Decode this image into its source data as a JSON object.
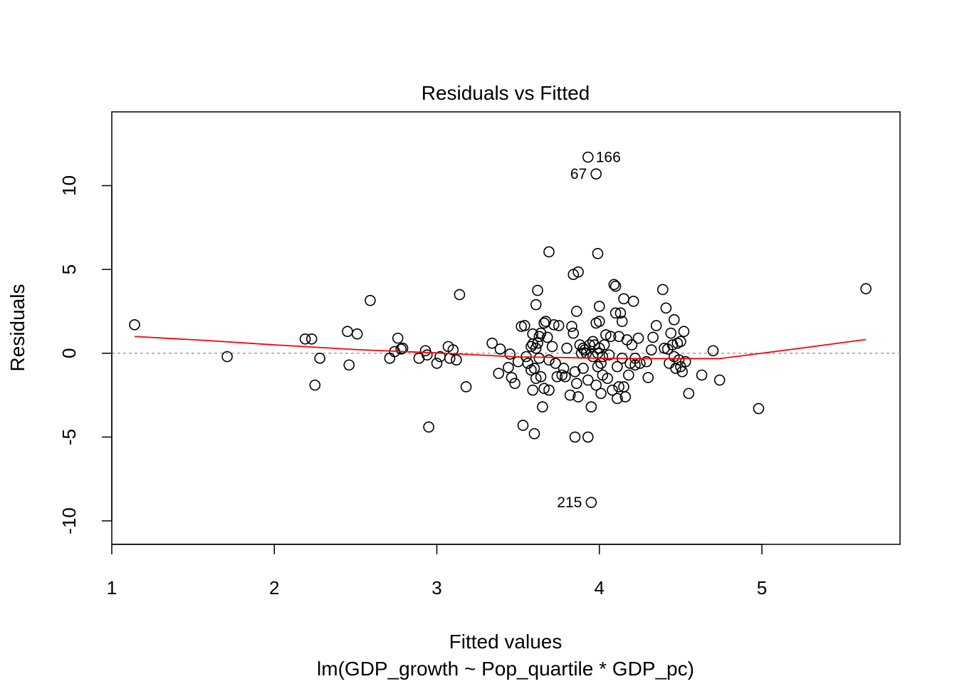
{
  "chart_data": {
    "type": "scatter",
    "title": "Residuals vs Fitted",
    "xlabel": "Fitted values",
    "ylabel": "Residuals",
    "subtitle": "lm(GDP_growth ~ Pop_quartile * GDP_pc)",
    "xlim": [
      1.0,
      5.85
    ],
    "ylim": [
      -11.4,
      14.4
    ],
    "x_ticks": [
      1,
      2,
      3,
      4,
      5
    ],
    "y_ticks": [
      -10,
      -5,
      0,
      5,
      10
    ],
    "reference_line": 0,
    "colors": {
      "points": "#000000",
      "smooth": "#ff0000",
      "reference": "#a0a0a0"
    },
    "points": [
      [
        1.14,
        1.7
      ],
      [
        1.71,
        -0.2
      ],
      [
        2.19,
        0.85
      ],
      [
        2.23,
        0.85
      ],
      [
        2.25,
        -1.9
      ],
      [
        2.28,
        -0.3
      ],
      [
        2.45,
        1.3
      ],
      [
        2.46,
        -0.7
      ],
      [
        2.51,
        1.15
      ],
      [
        2.59,
        3.15
      ],
      [
        2.71,
        -0.3
      ],
      [
        2.74,
        0.1
      ],
      [
        2.76,
        0.9
      ],
      [
        2.78,
        0.25
      ],
      [
        2.79,
        0.3
      ],
      [
        2.89,
        -0.3
      ],
      [
        2.93,
        0.15
      ],
      [
        2.94,
        -0.1
      ],
      [
        2.95,
        -4.4
      ],
      [
        3.0,
        -0.6
      ],
      [
        3.02,
        -0.2
      ],
      [
        3.07,
        0.4
      ],
      [
        3.08,
        -0.3
      ],
      [
        3.1,
        0.2
      ],
      [
        3.12,
        -0.4
      ],
      [
        3.14,
        3.5
      ],
      [
        3.18,
        -2.0
      ],
      [
        3.34,
        0.6
      ],
      [
        3.38,
        -1.2
      ],
      [
        3.39,
        0.25
      ],
      [
        3.44,
        -0.85
      ],
      [
        3.45,
        -0.05
      ],
      [
        3.46,
        -1.45
      ],
      [
        3.48,
        -1.8
      ],
      [
        3.5,
        -0.5
      ],
      [
        3.52,
        1.6
      ],
      [
        3.53,
        -4.3
      ],
      [
        3.54,
        1.65
      ],
      [
        3.55,
        -0.2
      ],
      [
        3.56,
        -0.6
      ],
      [
        3.58,
        -1.0
      ],
      [
        3.58,
        0.4
      ],
      [
        3.59,
        -2.2
      ],
      [
        3.59,
        0.55
      ],
      [
        3.59,
        1.15
      ],
      [
        3.6,
        -4.8
      ],
      [
        3.6,
        -0.9
      ],
      [
        3.61,
        0.3
      ],
      [
        3.61,
        2.9
      ],
      [
        3.61,
        -1.5
      ],
      [
        3.62,
        3.75
      ],
      [
        3.62,
        0.6
      ],
      [
        3.63,
        1.0
      ],
      [
        3.63,
        -0.3
      ],
      [
        3.64,
        1.2
      ],
      [
        3.64,
        -1.4
      ],
      [
        3.65,
        -3.2
      ],
      [
        3.66,
        1.8
      ],
      [
        3.66,
        -2.1
      ],
      [
        3.67,
        1.9
      ],
      [
        3.68,
        0.95
      ],
      [
        3.69,
        6.05
      ],
      [
        3.69,
        -0.4
      ],
      [
        3.69,
        -2.2
      ],
      [
        3.71,
        0.4
      ],
      [
        3.72,
        1.7
      ],
      [
        3.73,
        -0.6
      ],
      [
        3.74,
        -1.4
      ],
      [
        3.75,
        1.65
      ],
      [
        3.77,
        -1.3
      ],
      [
        3.78,
        -0.9
      ],
      [
        3.79,
        -1.4
      ],
      [
        3.8,
        0.3
      ],
      [
        3.82,
        -2.5
      ],
      [
        3.83,
        1.6
      ],
      [
        3.84,
        1.2
      ],
      [
        3.84,
        4.7
      ],
      [
        3.85,
        -5.0
      ],
      [
        3.85,
        -1.1
      ],
      [
        3.86,
        2.5
      ],
      [
        3.86,
        -1.8
      ],
      [
        3.87,
        -2.6
      ],
      [
        3.87,
        4.85
      ],
      [
        3.88,
        0.5
      ],
      [
        3.89,
        0.0
      ],
      [
        3.9,
        0.3
      ],
      [
        3.9,
        -0.9
      ],
      [
        3.91,
        0.2
      ],
      [
        3.92,
        0.0
      ],
      [
        3.93,
        -5.0
      ],
      [
        3.93,
        11.7
      ],
      [
        3.93,
        -1.6
      ],
      [
        3.94,
        0.5
      ],
      [
        3.95,
        -3.2
      ],
      [
        3.95,
        -8.9
      ],
      [
        3.96,
        -0.2
      ],
      [
        3.96,
        0.7
      ],
      [
        3.97,
        0.5
      ],
      [
        3.98,
        10.7
      ],
      [
        3.98,
        -1.9
      ],
      [
        3.98,
        1.8
      ],
      [
        3.99,
        5.95
      ],
      [
        3.99,
        0.0
      ],
      [
        3.99,
        -0.8
      ],
      [
        4.0,
        2.8
      ],
      [
        4.0,
        0.3
      ],
      [
        4.0,
        1.9
      ],
      [
        4.01,
        -2.4
      ],
      [
        4.01,
        -0.6
      ],
      [
        4.02,
        -0.2
      ],
      [
        4.02,
        -1.3
      ],
      [
        4.03,
        0.5
      ],
      [
        4.04,
        1.1
      ],
      [
        4.05,
        -1.5
      ],
      [
        4.06,
        -0.1
      ],
      [
        4.07,
        1.0
      ],
      [
        4.08,
        -2.2
      ],
      [
        4.09,
        4.1
      ],
      [
        4.1,
        4.0
      ],
      [
        4.1,
        2.4
      ],
      [
        4.11,
        -0.8
      ],
      [
        4.11,
        -2.7
      ],
      [
        4.12,
        1.0
      ],
      [
        4.12,
        -2.0
      ],
      [
        4.13,
        2.4
      ],
      [
        4.14,
        1.9
      ],
      [
        4.14,
        -0.3
      ],
      [
        4.15,
        -2.0
      ],
      [
        4.15,
        3.25
      ],
      [
        4.16,
        -2.6
      ],
      [
        4.17,
        0.8
      ],
      [
        4.18,
        -1.3
      ],
      [
        4.19,
        -0.6
      ],
      [
        4.2,
        0.5
      ],
      [
        4.21,
        3.1
      ],
      [
        4.22,
        -0.3
      ],
      [
        4.22,
        -0.7
      ],
      [
        4.24,
        0.9
      ],
      [
        4.25,
        -0.6
      ],
      [
        4.29,
        -0.5
      ],
      [
        4.3,
        -1.45
      ],
      [
        4.32,
        0.2
      ],
      [
        4.33,
        0.95
      ],
      [
        4.35,
        1.65
      ],
      [
        4.39,
        3.8
      ],
      [
        4.4,
        0.3
      ],
      [
        4.41,
        2.7
      ],
      [
        4.42,
        0.25
      ],
      [
        4.43,
        -0.6
      ],
      [
        4.44,
        1.2
      ],
      [
        4.45,
        0.5
      ],
      [
        4.46,
        -0.2
      ],
      [
        4.46,
        2.0
      ],
      [
        4.47,
        -0.9
      ],
      [
        4.48,
        0.6
      ],
      [
        4.49,
        -0.4
      ],
      [
        4.5,
        0.7
      ],
      [
        4.5,
        -0.8
      ],
      [
        4.51,
        -1.1
      ],
      [
        4.52,
        1.3
      ],
      [
        4.53,
        -0.5
      ],
      [
        4.55,
        -2.4
      ],
      [
        4.63,
        -1.3
      ],
      [
        4.7,
        0.15
      ],
      [
        4.74,
        -1.6
      ],
      [
        4.98,
        -3.3
      ],
      [
        5.64,
        3.85
      ]
    ],
    "labeled_points": [
      {
        "id": "166",
        "x": 3.93,
        "y": 11.7,
        "side": "right"
      },
      {
        "id": "67",
        "x": 3.98,
        "y": 10.7,
        "side": "left"
      },
      {
        "id": "215",
        "x": 3.95,
        "y": -8.9,
        "side": "left"
      }
    ],
    "smooth_line": [
      [
        1.14,
        1.0
      ],
      [
        1.6,
        0.75
      ],
      [
        2.0,
        0.5
      ],
      [
        2.5,
        0.22
      ],
      [
        3.0,
        0.02
      ],
      [
        3.5,
        -0.22
      ],
      [
        3.75,
        -0.25
      ],
      [
        4.0,
        -0.3
      ],
      [
        4.25,
        -0.32
      ],
      [
        4.5,
        -0.32
      ],
      [
        4.74,
        -0.32
      ],
      [
        5.0,
        0.0
      ],
      [
        5.3,
        0.38
      ],
      [
        5.64,
        0.82
      ]
    ]
  }
}
